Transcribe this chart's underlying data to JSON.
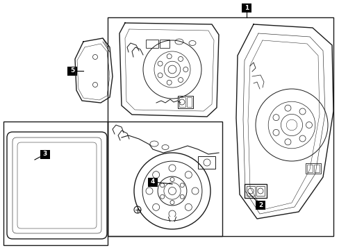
{
  "background_color": "#ffffff",
  "line_color": "#1a1a1a",
  "label_bg": "#000000",
  "label_text_color": "#ffffff",
  "figsize": [
    4.89,
    3.6
  ],
  "dpi": 100
}
